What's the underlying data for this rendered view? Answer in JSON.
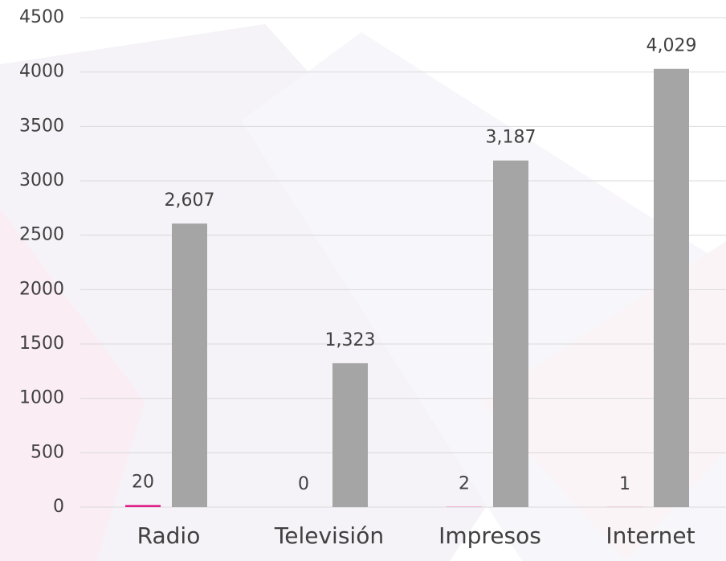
{
  "chart_data": {
    "type": "bar",
    "categories": [
      "Radio",
      "Televisión",
      "Impresos",
      "Internet"
    ],
    "series": [
      {
        "color": "#e0218a",
        "values": [
          20,
          0,
          2,
          1
        ]
      },
      {
        "color": "#a5a5a5",
        "values": [
          2607,
          1323,
          3187,
          4029
        ],
        "value_labels": [
          "2,607",
          "1,323",
          "3,187",
          "4,029"
        ]
      }
    ],
    "ylim": [
      0,
      4500
    ],
    "yticks": [
      0,
      500,
      1000,
      1500,
      2000,
      2500,
      3000,
      3500,
      4000,
      4500
    ],
    "grid": true
  }
}
